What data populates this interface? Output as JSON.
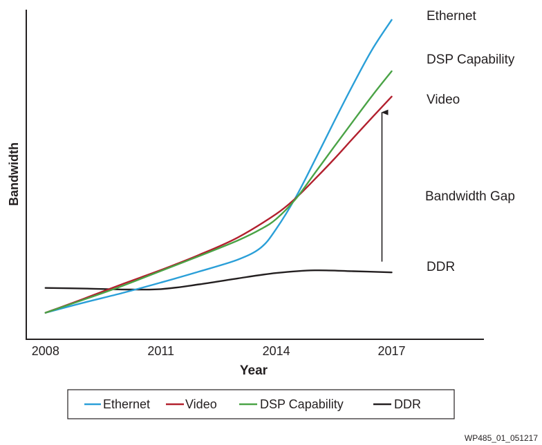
{
  "chart_data": {
    "type": "line",
    "title": "",
    "xlabel": "Year",
    "ylabel": "Bandwidth",
    "x_ticks": [
      "2008",
      "2011",
      "2014",
      "2017"
    ],
    "xlim": [
      2007.5,
      2019.4
    ],
    "ylim": [
      0,
      100
    ],
    "y_ticks_shown": false,
    "grid": false,
    "legend": {
      "placement": "bottom-center",
      "entries": [
        "Ethernet",
        "Video",
        "DSP Capability",
        "DDR"
      ]
    },
    "series": [
      {
        "name": "Ethernet",
        "color": "#2a9fd8",
        "points": [
          [
            2008,
            8.9
          ],
          [
            2009,
            12.3
          ],
          [
            2010,
            15.5
          ],
          [
            2011,
            19.0
          ],
          [
            2012,
            22.7
          ],
          [
            2013,
            26.7
          ],
          [
            2013.6,
            30.7
          ],
          [
            2014,
            37.0
          ],
          [
            2014.5,
            47.4
          ],
          [
            2015,
            59.9
          ],
          [
            2015.5,
            72.8
          ],
          [
            2016,
            85.4
          ],
          [
            2016.5,
            97.2
          ],
          [
            2017,
            107.0
          ]
        ]
      },
      {
        "name": "Video",
        "color": "#b2202e",
        "points": [
          [
            2008,
            8.9
          ],
          [
            2009,
            13.6
          ],
          [
            2010,
            18.5
          ],
          [
            2011,
            23.2
          ],
          [
            2012,
            28.3
          ],
          [
            2013,
            34.1
          ],
          [
            2014,
            42.0
          ],
          [
            2014.5,
            47.2
          ],
          [
            2015,
            53.6
          ],
          [
            2015.5,
            60.3
          ],
          [
            2016,
            67.4
          ],
          [
            2016.5,
            74.4
          ],
          [
            2017,
            81.3
          ]
        ]
      },
      {
        "name": "DSP Capability",
        "color": "#4aa346",
        "points": [
          [
            2008,
            8.9
          ],
          [
            2009,
            13.3
          ],
          [
            2010,
            17.9
          ],
          [
            2011,
            22.9
          ],
          [
            2012,
            27.9
          ],
          [
            2013,
            33.1
          ],
          [
            2013.6,
            36.9
          ],
          [
            2014,
            40.3
          ],
          [
            2014.5,
            46.9
          ],
          [
            2015,
            55.6
          ],
          [
            2015.5,
            64.4
          ],
          [
            2016,
            73.1
          ],
          [
            2016.5,
            81.7
          ],
          [
            2017,
            89.8
          ]
        ]
      },
      {
        "name": "DDR",
        "color": "#231f20",
        "points": [
          [
            2008,
            17.2
          ],
          [
            2009,
            17.0
          ],
          [
            2010,
            16.7
          ],
          [
            2011,
            16.8
          ],
          [
            2012,
            18.4
          ],
          [
            2013,
            20.4
          ],
          [
            2014,
            22.2
          ],
          [
            2015,
            23.1
          ],
          [
            2016,
            22.8
          ],
          [
            2017,
            22.4
          ]
        ]
      }
    ],
    "annotations": [
      {
        "text": "Ethernet",
        "attached_to": "Ethernet"
      },
      {
        "text": "DSP Capability",
        "attached_to": "DSP Capability"
      },
      {
        "text": "Video",
        "attached_to": "Video"
      },
      {
        "text": "DDR",
        "attached_to": "DDR"
      },
      {
        "text": "Bandwidth Gap",
        "arrow_from": [
          2017,
          26.0
        ],
        "arrow_to": [
          2017,
          76.0
        ]
      }
    ]
  },
  "footer": {
    "figure_id": "WP485_01_051217"
  }
}
